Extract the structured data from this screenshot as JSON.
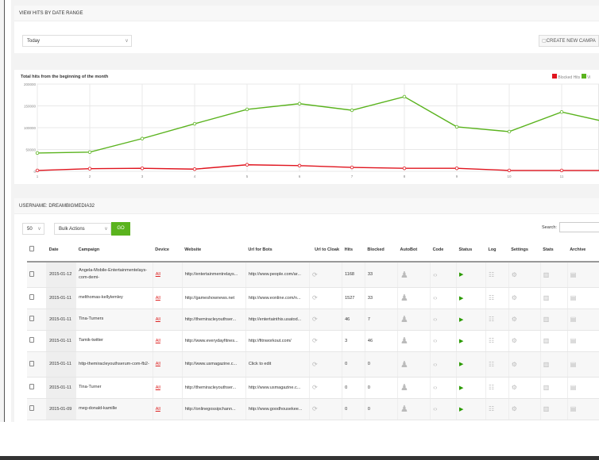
{
  "date_panel": {
    "title": "VIEW HITS BY DATE RANGE",
    "range_value": "Today",
    "create_button": "CREATE NEW CAMPA"
  },
  "chart_data": {
    "type": "line",
    "title": "Total hits from the beginning of the month",
    "categories": [
      "1",
      "2",
      "3",
      "4",
      "5",
      "6",
      "7",
      "8",
      "9",
      "10",
      "11",
      "12"
    ],
    "x_tick_labels": [
      "1",
      "2",
      "3",
      "4",
      "5",
      "6",
      "7",
      "8",
      "9",
      "10",
      "11"
    ],
    "yticks": [
      "0",
      "50000",
      "100000",
      "150000",
      "200000"
    ],
    "ylim": [
      0,
      200000
    ],
    "grid": true,
    "legend_placement": "top-right",
    "series": [
      {
        "name": "Blocked Hits",
        "color": "#e0141e",
        "values": [
          2000,
          6000,
          7000,
          5000,
          15000,
          13000,
          9000,
          7000,
          7000,
          2000,
          2000,
          2000
        ]
      },
      {
        "name": "Vi",
        "color": "#5ab31e",
        "values": [
          42000,
          44000,
          75000,
          109000,
          142000,
          155000,
          140000,
          171000,
          102000,
          91000,
          136000,
          109000
        ]
      }
    ]
  },
  "table_panel": {
    "title": "USERNAME: DREAMBIGMEDIA32",
    "page_size": "50",
    "bulk_actions": "Bulk Actions",
    "go": "GO",
    "search_label": "Search:",
    "search_value": "",
    "columns": [
      "Date",
      "Campaign",
      "Device",
      "Website",
      "Url for Bots",
      "Url to Cloak",
      "Hits",
      "Blocked",
      "AutoBot",
      "Code",
      "Status",
      "Log",
      "Settings",
      "Stats",
      "Archive"
    ],
    "rows": [
      {
        "date": "2015-01-12",
        "campaign": "Angela-Mobile-Entertainmentelays-com-demi-",
        "device": "All",
        "website": "http://entertainmentrelays...",
        "bots": "http://www.people.com/ar...",
        "hits": "1168",
        "blocked": "33"
      },
      {
        "date": "2015-01-11",
        "campaign": "melthomas-kellylemley",
        "device": "All",
        "website": "http://gameshownews.net",
        "bots": "http://www.eonline.com/n...",
        "hits": "1527",
        "blocked": "33"
      },
      {
        "date": "2015-01-11",
        "campaign": "Tina-Turners",
        "device": "All",
        "website": "http://themiracleyouthser...",
        "bots": "http://entertainthis.usatod...",
        "hits": "46",
        "blocked": "7"
      },
      {
        "date": "2015-01-11",
        "campaign": "Tamik-twitter",
        "device": "All",
        "website": "http://www.everydayfitnes...",
        "bots": "http://fitnworkout.com/",
        "hits": "3",
        "blocked": "46"
      },
      {
        "date": "2015-01-11",
        "campaign": "http-themiracleyouthserum-com-fb2-",
        "device": "All",
        "website": "http://www.usmagazine.c...",
        "bots": "Click to edit",
        "hits": "0",
        "blocked": "0"
      },
      {
        "date": "2015-01-11",
        "campaign": "Tina-Turner",
        "device": "All",
        "website": "http://themiracleyouthser...",
        "bots": "http://www.usmagazine.c...",
        "hits": "0",
        "blocked": "0"
      },
      {
        "date": "2015-01-09",
        "campaign": "meg-donald-kamille",
        "device": "All",
        "website": "http://onlinegossipchann...",
        "bots": "http://www.goodhousekee...",
        "hits": "0",
        "blocked": "0"
      }
    ]
  }
}
